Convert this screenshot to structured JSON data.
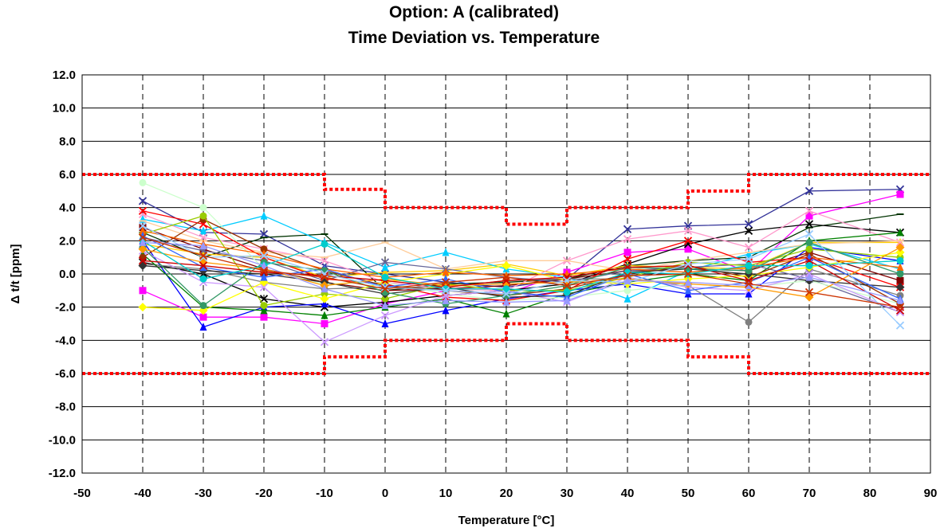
{
  "chart_data": {
    "type": "line",
    "title_line1": "Option: A     (calibrated)",
    "title_line2": "Time Deviation vs. Temperature",
    "xlabel": "Temperature [°C]",
    "ylabel": "Δ t/t  [ppm]",
    "xlim": [
      -50,
      90
    ],
    "ylim": [
      -12,
      12
    ],
    "x_ticks": [
      -50,
      -40,
      -30,
      -20,
      -10,
      0,
      10,
      20,
      30,
      40,
      50,
      60,
      70,
      80,
      90
    ],
    "y_ticks": [
      12,
      10,
      8,
      6,
      4,
      2,
      0,
      -2,
      -4,
      -6,
      -8,
      -10,
      -12
    ],
    "x_tick_labels": [
      "-50",
      "-40",
      "-30",
      "-20",
      "-10",
      "0",
      "10",
      "20",
      "30",
      "40",
      "50",
      "60",
      "70",
      "80",
      "90"
    ],
    "y_tick_labels": [
      "12.0",
      "10.0",
      "8.0",
      "6.0",
      "4.0",
      "2.0",
      "0.0",
      "-2.0",
      "-4.0",
      "-6.0",
      "-8.0",
      "-10.0",
      "-12.0"
    ],
    "grid": "horizontal solid, vertical dashed",
    "x": [
      -40,
      -30,
      -20,
      -10,
      0,
      10,
      20,
      30,
      40,
      50,
      60,
      70,
      85
    ],
    "limits": {
      "color": "#ff0000",
      "upper": {
        "x": [
          -50,
          -10,
          -10,
          0,
          0,
          20,
          20,
          30,
          30,
          50,
          50,
          60,
          60,
          90
        ],
        "y": [
          6,
          6,
          5.1,
          5.1,
          4,
          4,
          3,
          3,
          4,
          4,
          5,
          5,
          6,
          6
        ]
      },
      "lower": {
        "x": [
          -50,
          -10,
          -10,
          0,
          0,
          20,
          20,
          30,
          30,
          50,
          50,
          60,
          60,
          90
        ],
        "y": [
          -6,
          -6,
          -5,
          -5,
          -4,
          -4,
          -3,
          -3,
          -4,
          -4,
          -5,
          -5,
          -6,
          -6
        ]
      }
    },
    "series": [
      {
        "color": "#333399",
        "marker": "x",
        "values": [
          4.4,
          2.5,
          2.4,
          0.5,
          0.0,
          -0.5,
          -0.8,
          -0.3,
          2.7,
          2.9,
          3.0,
          5.0,
          5.1
        ]
      },
      {
        "color": "#ff00ff",
        "marker": "square",
        "values": [
          -1.0,
          -2.6,
          -2.6,
          -3.0,
          -1.8,
          -1.0,
          -1.2,
          0.1,
          1.3,
          1.5,
          0.1,
          3.5,
          4.8
        ]
      },
      {
        "color": "#003300",
        "marker": "dash",
        "values": [
          2.5,
          1.0,
          2.2,
          2.4,
          -1.0,
          -0.6,
          -0.5,
          -0.3,
          0.5,
          0.8,
          1.0,
          2.8,
          3.6
        ]
      },
      {
        "color": "#000000",
        "marker": "x",
        "values": [
          0.7,
          0.0,
          -1.5,
          -2.0,
          -1.7,
          -1.3,
          -1.0,
          -0.6,
          0.6,
          1.8,
          2.6,
          3.0,
          2.5
        ]
      },
      {
        "color": "#800000",
        "marker": "square",
        "values": [
          2.8,
          1.5,
          0.3,
          -0.5,
          -1.0,
          -0.9,
          -0.7,
          -0.3,
          0.2,
          0.3,
          0.2,
          1.3,
          -0.4
        ]
      },
      {
        "color": "#ffcc00",
        "marker": "triangle",
        "values": [
          1.8,
          1.2,
          1.0,
          -0.2,
          0.1,
          0.2,
          0.6,
          -0.1,
          0.5,
          0.4,
          0.3,
          1.9,
          1.9
        ]
      },
      {
        "color": "#00ccff",
        "marker": "triangle",
        "values": [
          3.3,
          2.6,
          3.5,
          1.9,
          0.4,
          1.3,
          0.3,
          -0.2,
          -1.5,
          0.2,
          1.2,
          1.8,
          0.3
        ]
      },
      {
        "color": "#0000ff",
        "marker": "triangle",
        "values": [
          2.0,
          -3.2,
          -2.0,
          -1.8,
          -3.0,
          -2.2,
          -1.5,
          -1.0,
          -0.6,
          -1.2,
          -1.2,
          1.6,
          0.8
        ]
      },
      {
        "color": "#808080",
        "marker": "circle",
        "values": [
          0.6,
          0.3,
          -0.5,
          -0.9,
          -0.8,
          -0.8,
          -0.4,
          -0.3,
          -0.3,
          -0.7,
          -2.9,
          0.3,
          -1.3
        ]
      },
      {
        "color": "#ff99cc",
        "marker": "x",
        "values": [
          3.6,
          2.2,
          1.5,
          0.8,
          -0.5,
          -0.9,
          -1.0,
          0.8,
          2.1,
          2.6,
          1.6,
          3.8,
          1.9
        ]
      },
      {
        "color": "#ffcc99",
        "marker": "dash",
        "values": [
          3.2,
          2.0,
          1.3,
          1.0,
          1.9,
          0.3,
          0.8,
          0.8,
          0.2,
          0.8,
          1.3,
          1.8,
          2.0
        ]
      },
      {
        "color": "#008000",
        "marker": "triangle",
        "values": [
          1.2,
          -2.0,
          -2.2,
          -2.5,
          -2.0,
          -1.5,
          -2.4,
          -1.2,
          -0.5,
          0.0,
          -0.4,
          2.0,
          2.5
        ]
      },
      {
        "color": "#666699",
        "marker": "x",
        "values": [
          2.2,
          1.4,
          0.8,
          -0.4,
          0.7,
          0.3,
          -0.2,
          -0.5,
          0.2,
          0.4,
          0.6,
          -0.3,
          -2.3
        ]
      },
      {
        "color": "#ccffcc",
        "marker": "circle",
        "values": [
          5.5,
          4.0,
          0.3,
          -0.6,
          -0.5,
          -1.2,
          -1.6,
          -1.4,
          -1.0,
          -0.6,
          -0.8,
          -0.4,
          -1.8
        ]
      },
      {
        "color": "#ff0000",
        "marker": "x",
        "values": [
          3.8,
          3.0,
          1.0,
          -0.3,
          -0.6,
          -1.4,
          -1.6,
          -1.0,
          0.9,
          2.0,
          0.7,
          1.0,
          -0.8
        ]
      },
      {
        "color": "#993300",
        "marker": "circle",
        "values": [
          1.0,
          3.3,
          1.5,
          0.2,
          -0.7,
          -1.0,
          -1.3,
          -0.9,
          0.0,
          0.5,
          -0.2,
          1.2,
          -1.8
        ]
      },
      {
        "color": "#cc99ff",
        "marker": "x",
        "values": [
          1.4,
          -0.5,
          -0.8,
          -4.1,
          -2.5,
          -1.3,
          -1.0,
          -1.7,
          -0.2,
          -0.8,
          -1.0,
          0.0,
          -2.3
        ]
      },
      {
        "color": "#99cc00",
        "marker": "circle",
        "values": [
          2.4,
          3.5,
          -1.9,
          -1.2,
          -1.5,
          -0.6,
          -1.0,
          -1.0,
          -0.2,
          0.7,
          0.5,
          1.5,
          1.0
        ]
      },
      {
        "color": "#ffff00",
        "marker": "diamond",
        "values": [
          -2.0,
          -2.2,
          -0.5,
          -1.5,
          -0.5,
          0.0,
          0.5,
          -0.4,
          -0.6,
          -0.3,
          -0.1,
          0.4,
          1.3
        ]
      },
      {
        "color": "#ff6600",
        "marker": "triangle",
        "values": [
          2.6,
          1.8,
          1.2,
          0.3,
          -0.2,
          0.1,
          -0.1,
          0.0,
          0.3,
          0.1,
          0.4,
          1.0,
          0.4
        ]
      },
      {
        "color": "#333333",
        "marker": "diamond",
        "values": [
          0.5,
          0.2,
          0.0,
          -0.5,
          -1.2,
          -0.8,
          -1.4,
          -1.3,
          0.1,
          0.3,
          0.0,
          -0.4,
          -0.8
        ]
      },
      {
        "color": "#3366ff",
        "marker": "triangle",
        "values": [
          2.3,
          0.4,
          -0.2,
          0.3,
          -0.8,
          -0.3,
          -1.1,
          -1.4,
          0.0,
          -1.0,
          -0.5,
          1.0,
          -1.5
        ]
      },
      {
        "color": "#339966",
        "marker": "circle",
        "values": [
          1.6,
          -1.9,
          0.7,
          0.2,
          -1.1,
          -1.8,
          -1.3,
          -0.7,
          0.4,
          0.3,
          0.2,
          1.9,
          0.0
        ]
      },
      {
        "color": "#ff9900",
        "marker": "diamond",
        "values": [
          1.5,
          0.7,
          0.3,
          -0.7,
          -0.3,
          -0.7,
          -0.6,
          -0.5,
          -0.3,
          -0.6,
          -0.8,
          -1.4,
          1.6
        ]
      },
      {
        "color": "#cc0000",
        "marker": "x",
        "values": [
          0.8,
          0.5,
          0.1,
          -0.1,
          -0.4,
          -0.8,
          -0.4,
          -0.2,
          0.4,
          0.5,
          -0.4,
          0.8,
          -2.2
        ]
      },
      {
        "color": "#00cccc",
        "marker": "circle",
        "values": [
          2.0,
          -0.3,
          0.5,
          1.8,
          -0.2,
          -0.9,
          -0.9,
          -1.1,
          0.1,
          0.0,
          0.5,
          0.5,
          0.8
        ]
      },
      {
        "color": "#99ccff",
        "marker": "x",
        "values": [
          2.9,
          1.0,
          1.1,
          0.0,
          -0.8,
          -1.0,
          -1.2,
          -0.4,
          -0.5,
          0.6,
          0.9,
          2.4,
          -3.1
        ]
      },
      {
        "color": "#9999ff",
        "marker": "triangle",
        "values": [
          1.9,
          1.7,
          0.5,
          -0.9,
          -1.9,
          -1.6,
          -1.7,
          -1.6,
          -0.4,
          -0.5,
          -0.7,
          -0.2,
          -1.6
        ]
      },
      {
        "color": "#cc3300",
        "marker": "x",
        "values": [
          2.2,
          1.1,
          0.2,
          -0.2,
          -0.9,
          -0.5,
          -0.2,
          -0.7,
          -0.1,
          0.0,
          -0.6,
          -1.1,
          -2.0
        ]
      }
    ]
  }
}
